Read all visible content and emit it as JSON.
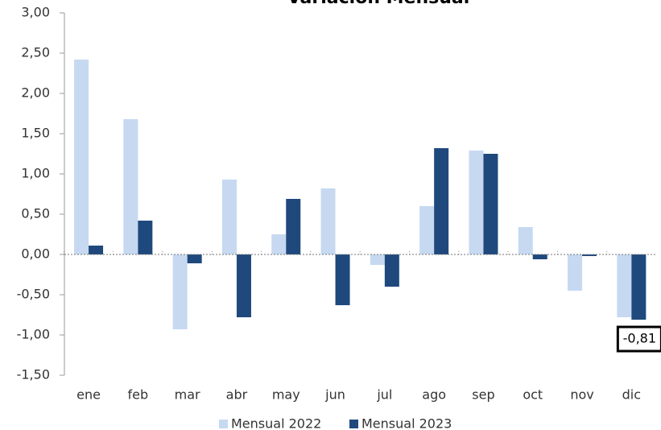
{
  "chart_data": {
    "type": "bar",
    "title": "Variación Mensual",
    "categories": [
      "ene",
      "feb",
      "mar",
      "abr",
      "may",
      "jun",
      "jul",
      "ago",
      "sep",
      "oct",
      "nov",
      "dic"
    ],
    "series": [
      {
        "name": "Mensual 2022",
        "color": "#c6d9f1",
        "values": [
          2.42,
          1.68,
          -0.93,
          0.93,
          0.25,
          0.82,
          -0.13,
          0.6,
          1.29,
          0.34,
          -0.45,
          -0.78
        ]
      },
      {
        "name": "Mensual 2023",
        "color": "#1f497d",
        "values": [
          0.11,
          0.42,
          -0.11,
          -0.78,
          0.69,
          -0.63,
          -0.4,
          1.32,
          1.25,
          -0.06,
          -0.02,
          -0.81
        ],
        "value_labels": [
          null,
          null,
          null,
          null,
          null,
          null,
          null,
          null,
          null,
          null,
          null,
          "-0,81"
        ]
      }
    ],
    "ylim": [
      -1.5,
      3.0
    ],
    "yticks": [
      {
        "value": -1.5,
        "label": "-1,50"
      },
      {
        "value": -1.0,
        "label": "-1,00"
      },
      {
        "value": -0.5,
        "label": "-0,50"
      },
      {
        "value": 0,
        "label": "0,00"
      },
      {
        "value": 0.5,
        "label": "0,50"
      },
      {
        "value": 1.0,
        "label": "1,00"
      },
      {
        "value": 1.5,
        "label": "1,50"
      },
      {
        "value": 2.0,
        "label": "2,00"
      },
      {
        "value": 2.5,
        "label": "2,50"
      },
      {
        "value": 3.0,
        "label": "3,00"
      }
    ],
    "legend": "bottom"
  }
}
